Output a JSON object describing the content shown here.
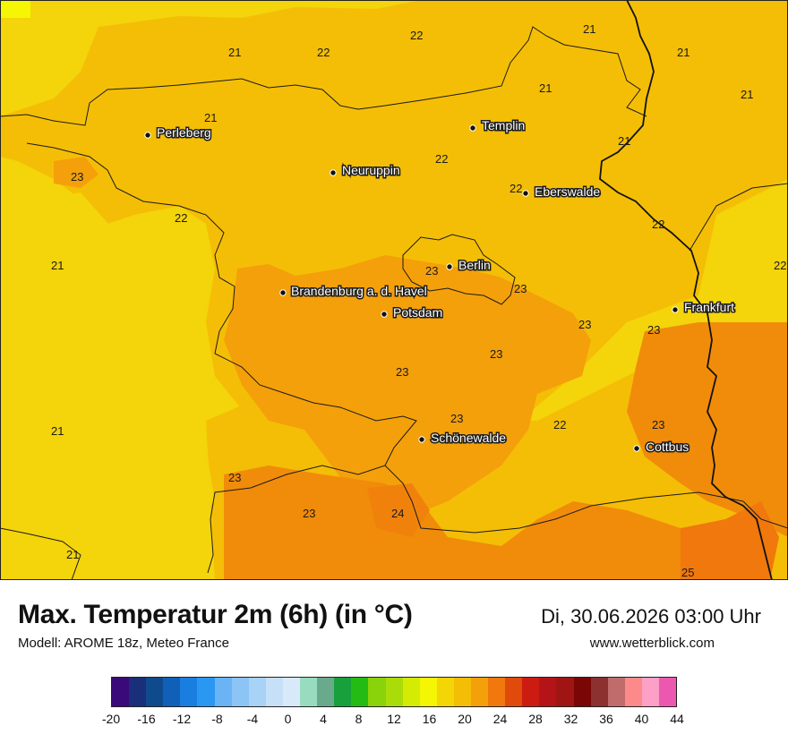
{
  "map": {
    "temperature_labels": [
      {
        "text": "22"
      },
      {
        "text": "21"
      },
      {
        "text": "21"
      },
      {
        "text": "21"
      },
      {
        "text": "22"
      },
      {
        "text": "21"
      },
      {
        "text": "21"
      },
      {
        "text": "21"
      },
      {
        "text": "22"
      },
      {
        "text": "21"
      },
      {
        "text": "23"
      },
      {
        "text": "22"
      },
      {
        "text": "22"
      },
      {
        "text": "22"
      },
      {
        "text": "21"
      },
      {
        "text": "23"
      },
      {
        "text": "23"
      },
      {
        "text": "22"
      },
      {
        "text": "23"
      },
      {
        "text": "23"
      },
      {
        "text": "23"
      },
      {
        "text": "23"
      },
      {
        "text": "21"
      },
      {
        "text": "23"
      },
      {
        "text": "22"
      },
      {
        "text": "23"
      },
      {
        "text": "23"
      },
      {
        "text": "24"
      },
      {
        "text": "23"
      },
      {
        "text": "21"
      },
      {
        "text": "25"
      }
    ],
    "cities": [
      {
        "name": "Perleberg"
      },
      {
        "name": "Templin"
      },
      {
        "name": "Neuruppin"
      },
      {
        "name": "Eberswalde"
      },
      {
        "name": "Berlin"
      },
      {
        "name": "Brandenburg a. d. Havel"
      },
      {
        "name": "Potsdam"
      },
      {
        "name": "Frankfurt"
      },
      {
        "name": "Schönewalde"
      },
      {
        "name": "Cottbus"
      }
    ]
  },
  "header": {
    "title": "Max. Temperatur 2m (6h) (in °C)",
    "subtitle": "Modell: AROME 18z, Meteo France",
    "datetime": "Di, 30.06.2026 03:00 Uhr",
    "website": "www.wetterblick.com"
  },
  "legend": {
    "tick_labels": [
      "-20",
      "-16",
      "-12",
      "-8",
      "-4",
      "0",
      "4",
      "8",
      "12",
      "16",
      "20",
      "24",
      "28",
      "32",
      "36",
      "40",
      "44"
    ],
    "colors": [
      "#3a0a7a",
      "#1a2f7a",
      "#0f4a8c",
      "#1060b8",
      "#1a7ee0",
      "#2a98f2",
      "#6ab4f6",
      "#8cc4f6",
      "#a8d2f6",
      "#c6e0f8",
      "#d8eafa",
      "#98dcc0",
      "#6aaa8c",
      "#18a03c",
      "#24bc14",
      "#8ad20a",
      "#aadc0a",
      "#d4ec04",
      "#f4f604",
      "#f4d606",
      "#f4be06",
      "#f4a00a",
      "#f0780c",
      "#e04a0a",
      "#cc1c12",
      "#b41418",
      "#a01414",
      "#7a0606",
      "#8c3030",
      "#c06c6c",
      "#fc8a8a",
      "#fca0c8",
      "#ec58b0"
    ]
  }
}
